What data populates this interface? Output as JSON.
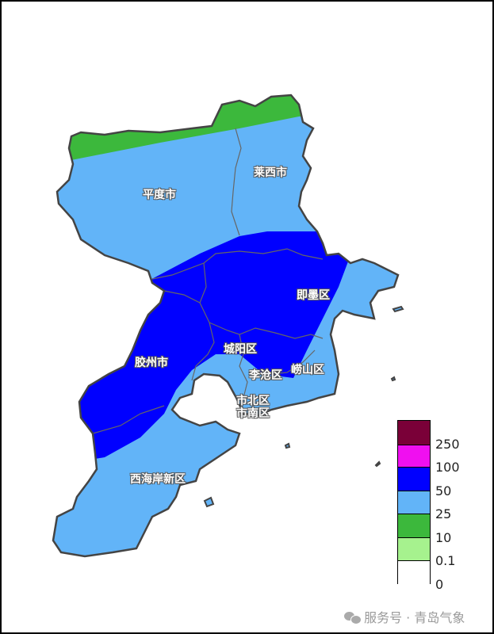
{
  "map": {
    "regions": [
      {
        "name": "平度市"
      },
      {
        "name": "莱西市"
      },
      {
        "name": "即墨区"
      },
      {
        "name": "胶州市"
      },
      {
        "name": "城阳区"
      },
      {
        "name": "李沧区"
      },
      {
        "name": "崂山区"
      },
      {
        "name": "市北区"
      },
      {
        "name": "市南区"
      },
      {
        "name": "西海岸新区"
      }
    ],
    "fill_colors": {
      "10-25": "#3cb83c",
      "25-50": "#62b4f8",
      "50-100": "#0000ff"
    }
  },
  "legend": {
    "bins": [
      {
        "color": "#7a0038"
      },
      {
        "color": "#f00ff0"
      },
      {
        "color": "#0000ff"
      },
      {
        "color": "#62b4f8"
      },
      {
        "color": "#3cb83c"
      },
      {
        "color": "#a6f28e"
      },
      {
        "color": "#ffffff"
      }
    ],
    "ticks": [
      "250",
      "100",
      "50",
      "25",
      "10",
      "0.1",
      "0"
    ]
  },
  "watermark": {
    "text": "服务号 · 青岛气象",
    "icon": "wechat-icon"
  }
}
